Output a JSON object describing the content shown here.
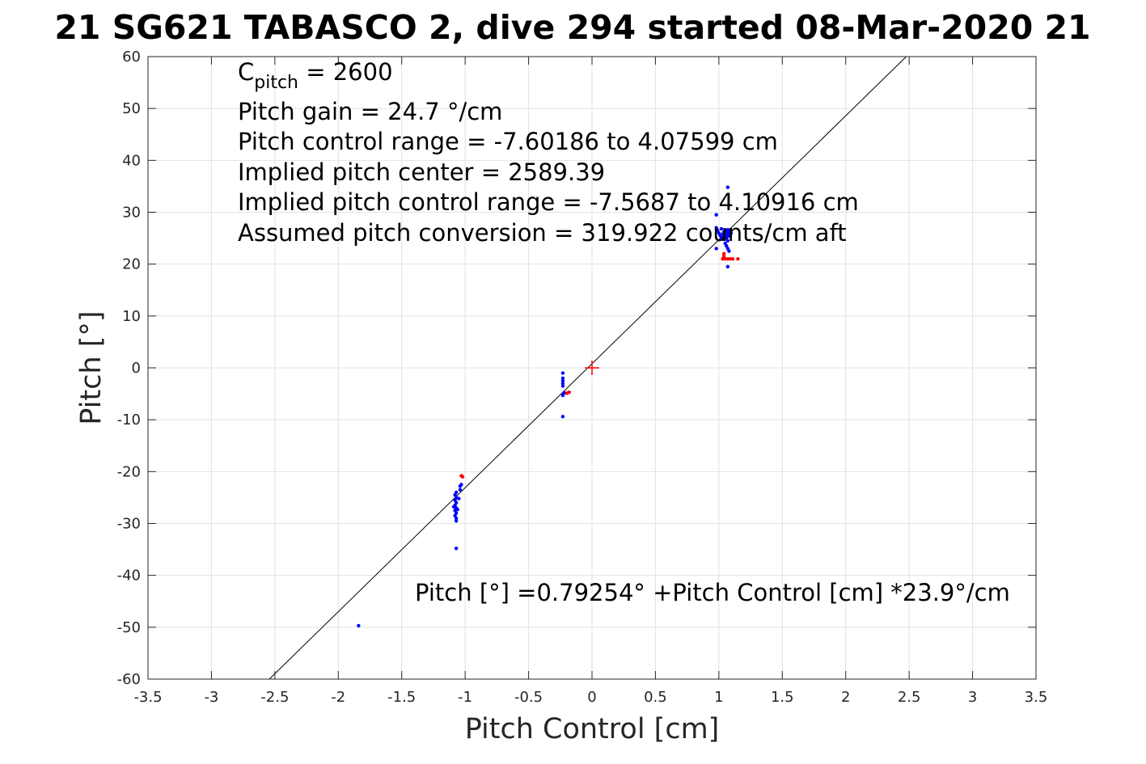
{
  "chart_data": {
    "type": "scatter",
    "title": "21 SG621 TABASCO 2, dive 294 started 08-Mar-2020 21",
    "xlabel": "Pitch Control [cm]",
    "ylabel": "Pitch [°]",
    "xlim": [
      -3.5,
      3.5
    ],
    "ylim": [
      -60,
      60
    ],
    "xticks": [
      -3.5,
      -3,
      -2.5,
      -2,
      -1.5,
      -1,
      -0.5,
      0,
      0.5,
      1,
      1.5,
      2,
      2.5,
      3,
      3.5
    ],
    "xtick_labels": [
      "-3.5",
      "-3",
      "-2.5",
      "-2",
      "-1.5",
      "-1",
      "-0.5",
      "0",
      "0.5",
      "1",
      "1.5",
      "2",
      "2.5",
      "3",
      "3.5"
    ],
    "yticks": [
      -60,
      -50,
      -40,
      -30,
      -20,
      -10,
      0,
      10,
      20,
      30,
      40,
      50,
      60
    ],
    "ytick_labels": [
      "-60",
      "-50",
      "-40",
      "-30",
      "-20",
      "-10",
      "0",
      "10",
      "20",
      "30",
      "40",
      "50",
      "60"
    ],
    "grid": true,
    "annotations": {
      "c_pitch_base": "C",
      "c_pitch_sub": "pitch",
      "c_pitch_value": " = 2600",
      "lines": [
        "Pitch gain = 24.7 °/cm",
        "Pitch control range = -7.60186 to 4.07599 cm",
        "Implied pitch center = 2589.39",
        "Implied pitch control range = -7.5687 to 4.10916 cm",
        "Assumed pitch conversion = 319.922 counts/cm aft"
      ],
      "fit_equation": "Pitch [°] =0.79254° +Pitch Control [cm] *23.9°/cm"
    },
    "fit_line": {
      "intercept": 0.79254,
      "slope": 23.9,
      "color": "#000000"
    },
    "center_marker": {
      "x": 0,
      "y": 0,
      "color": "#ff0000"
    },
    "series": [
      {
        "color": "#0000ff",
        "points": [
          [
            -1.84,
            -49.7
          ],
          [
            -1.07,
            -34.8
          ],
          [
            -1.07,
            -29.5
          ],
          [
            -1.07,
            -29.0
          ],
          [
            -1.08,
            -28.5
          ],
          [
            -1.07,
            -28.0
          ],
          [
            -1.08,
            -27.5
          ],
          [
            -1.07,
            -27.0
          ],
          [
            -1.08,
            -26.5
          ],
          [
            -1.07,
            -26.0
          ],
          [
            -1.08,
            -25.5
          ],
          [
            -1.07,
            -25.0
          ],
          [
            -1.08,
            -24.5
          ],
          [
            -1.07,
            -24.0
          ],
          [
            -1.06,
            -27.3
          ],
          [
            -1.09,
            -26.8
          ],
          [
            -1.05,
            -25.2
          ],
          [
            -1.04,
            -23.5
          ],
          [
            -1.04,
            -22.8
          ],
          [
            -1.03,
            -22.5
          ],
          [
            -0.23,
            -9.4
          ],
          [
            -0.23,
            -5.3
          ],
          [
            -0.23,
            -3.5
          ],
          [
            -0.23,
            -3.0
          ],
          [
            -0.23,
            -2.5
          ],
          [
            -0.23,
            -2.0
          ],
          [
            -0.23,
            -1.0
          ],
          [
            -0.22,
            -4.8
          ],
          [
            0.98,
            29.5
          ],
          [
            0.98,
            27.0
          ],
          [
            0.99,
            26.5
          ],
          [
            1.0,
            26.0
          ],
          [
            1.01,
            25.5
          ],
          [
            1.02,
            25.0
          ],
          [
            1.03,
            25.8
          ],
          [
            1.04,
            26.2
          ],
          [
            1.05,
            25.5
          ],
          [
            1.06,
            25.0
          ],
          [
            1.07,
            24.5
          ],
          [
            1.06,
            26.0
          ],
          [
            1.07,
            26.5
          ],
          [
            1.08,
            25.8
          ],
          [
            1.05,
            24.0
          ],
          [
            1.06,
            23.5
          ],
          [
            1.07,
            23.0
          ],
          [
            1.08,
            22.5
          ],
          [
            1.07,
            34.8
          ],
          [
            1.07,
            19.5
          ],
          [
            0.98,
            23.0
          ],
          [
            1.03,
            24.8
          ],
          [
            1.04,
            25.2
          ],
          [
            1.02,
            26.8
          ]
        ]
      },
      {
        "color": "#ff0000",
        "points": [
          [
            -1.03,
            -20.8
          ],
          [
            -1.02,
            -21.0
          ],
          [
            -0.2,
            -4.9
          ],
          [
            -0.18,
            -4.7
          ],
          [
            1.03,
            21.0
          ],
          [
            1.05,
            21.0
          ],
          [
            1.07,
            21.0
          ],
          [
            1.09,
            21.0
          ],
          [
            1.11,
            21.0
          ],
          [
            1.15,
            21.0
          ],
          [
            1.04,
            22.0
          ],
          [
            1.04,
            21.5
          ]
        ]
      }
    ]
  }
}
